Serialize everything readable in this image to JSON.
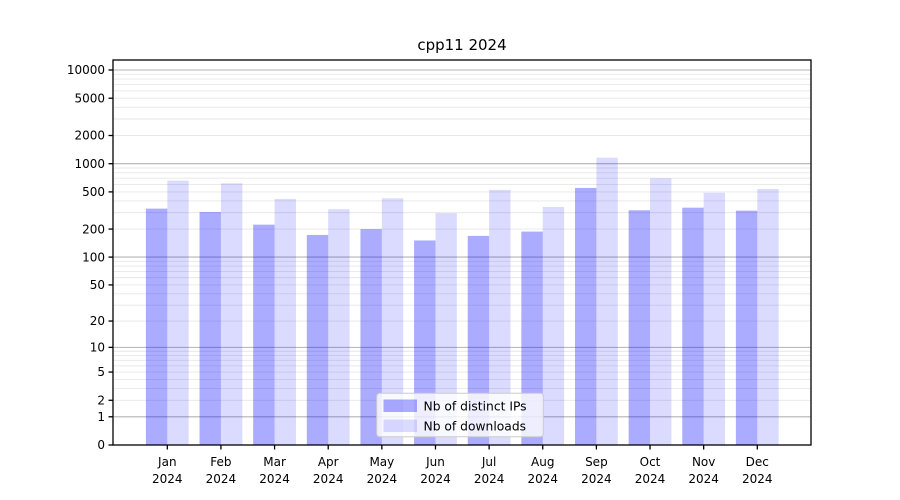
{
  "title": "cpp11 2024",
  "chart_data": {
    "type": "bar",
    "title": "cpp11 2024",
    "x_categories": [
      "Jan",
      "Feb",
      "Mar",
      "Apr",
      "May",
      "Jun",
      "Jul",
      "Aug",
      "Sep",
      "Oct",
      "Nov",
      "Dec"
    ],
    "x_year": "2024",
    "series": [
      {
        "name": "Nb of distinct IPs",
        "color": "rgba(0,0,255,0.33)",
        "color_hex": "#ababff",
        "values": [
          331,
          305,
          223,
          173,
          200,
          151,
          169,
          188,
          551,
          318,
          339,
          315
        ]
      },
      {
        "name": "Nb of downloads",
        "color": "rgba(0,0,255,0.14)",
        "color_hex": "#dbdbff",
        "values": [
          660,
          618,
          420,
          327,
          427,
          296,
          525,
          345,
          1160,
          699,
          490,
          537
        ]
      }
    ],
    "y_scale": "log10(1+v)",
    "y_ticks": [
      0,
      1,
      2,
      5,
      10,
      20,
      50,
      100,
      200,
      500,
      1000,
      2000,
      5000,
      10000
    ],
    "y_major_gridlines": [
      1,
      10,
      100,
      1000,
      10000
    ],
    "ylim": [
      0,
      13700
    ],
    "xlabel": "",
    "ylabel": "",
    "grid": {
      "major_color": "#b3b3b3",
      "minor_color": "#e7e7e7"
    },
    "legend": {
      "position": "bottom-center",
      "background": "rgba(255,255,255,0.8)",
      "border_color": "#cccccc"
    }
  }
}
